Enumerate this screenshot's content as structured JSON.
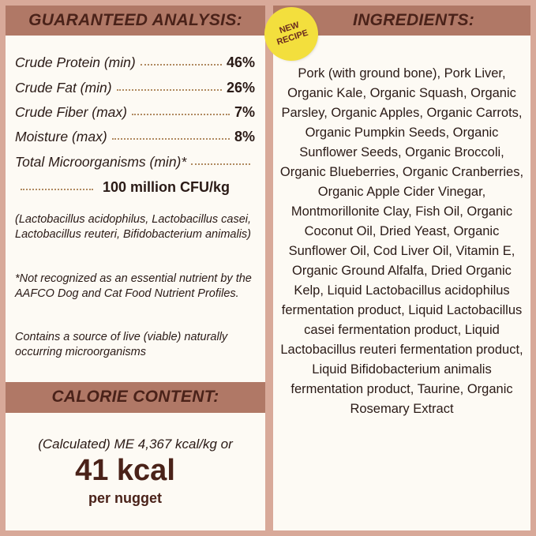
{
  "analysis": {
    "title": "GUARANTEED ANALYSIS:",
    "rows": [
      {
        "label": "Crude Protein (min)",
        "value": "46%"
      },
      {
        "label": "Crude Fat (min)",
        "value": "26%"
      },
      {
        "label": "Crude Fiber (max)",
        "value": "7%"
      },
      {
        "label": "Moisture (max)",
        "value": "8%"
      },
      {
        "label": "Total Microorganisms (min)*",
        "value": "100 million CFU/kg"
      }
    ],
    "species_note": "(Lactobacillus acidophilus, Lactobacillus casei, Lactobacillus reuteri, Bifidobacterium animalis)",
    "aafco_note": "*Not recognized as an essential nutrient by the AAFCO Dog and Cat Food Nutrient Profiles.",
    "live_note": "Contains a source of live (viable) naturally occurring microorganisms"
  },
  "calorie": {
    "title": "CALORIE CONTENT:",
    "calculated": "(Calculated) ME 4,367 kcal/kg or",
    "big": "41 kcal",
    "unit": "per nugget"
  },
  "ingredients": {
    "title": "INGREDIENTS:",
    "badge_line1": "NEW",
    "badge_line2": "RECIPE",
    "text": "Pork (with ground bone), Pork Liver, Organic Kale, Organic Squash, Organic Parsley, Organic Apples, Organic Carrots, Organic Pumpkin Seeds, Organic Sunflower Seeds, Organic Broccoli, Organic Blueberries, Organic Cranberries, Organic Apple Cider Vinegar, Montmorillonite Clay, Fish Oil, Organic Coconut Oil, Dried Yeast, Organic Sunflower Oil, Cod Liver Oil, Vitamin E, Organic Ground Alfalfa, Dried Organic Kelp, Liquid Lactobacillus acidophilus fermentation product, Liquid Lactobacillus casei fermentation product, Liquid Lactobacillus reuteri fermentation product, Liquid Bifidobacterium animalis fermentation product, Taurine, Organic Rosemary Extract"
  },
  "colors": {
    "background": "#d8a999",
    "header": "#b07866",
    "header_text": "#4a2219",
    "panel": "#fdfaf4",
    "badge": "#f3df3d"
  }
}
